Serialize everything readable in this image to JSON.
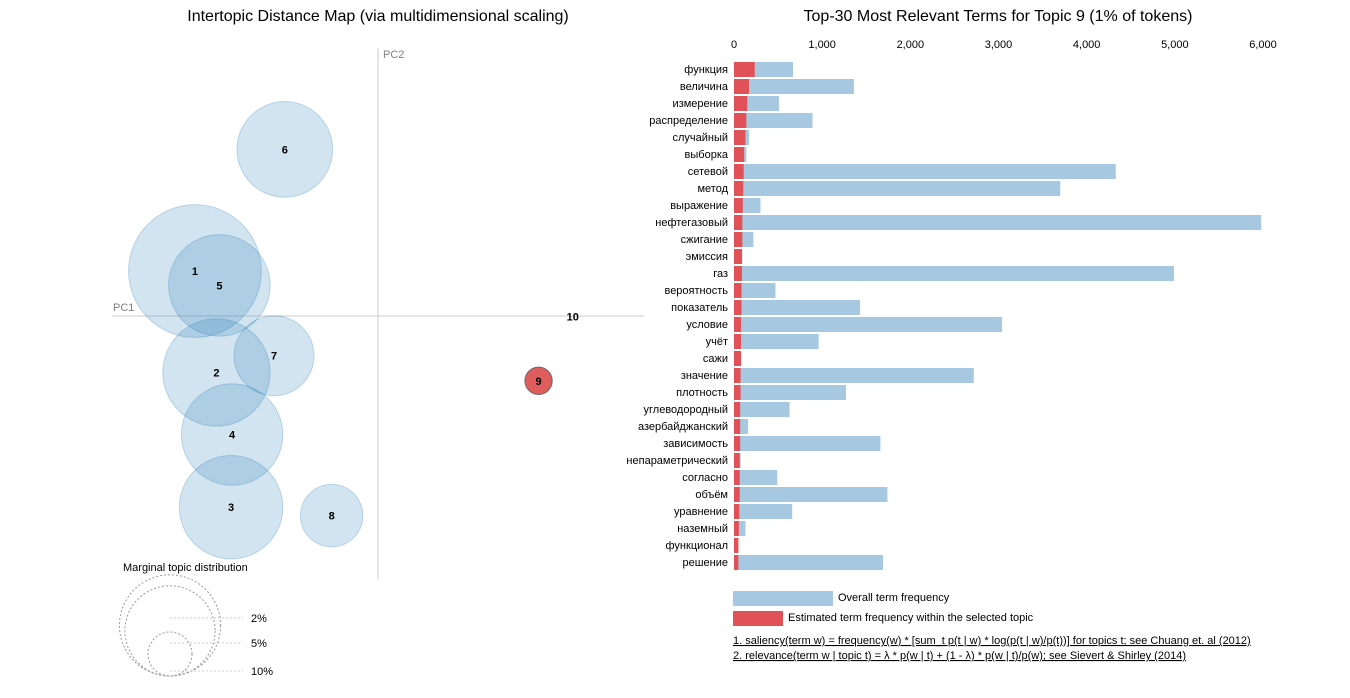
{
  "chart_data": [
    {
      "type": "scatter",
      "title": "Intertopic Distance Map (via multidimensional scaling)",
      "xlabel": "PC1",
      "ylabel": "PC2",
      "grid": false,
      "selected_topic": "9",
      "colors": {
        "bubble": "#1f77b4",
        "selected": "#d62728"
      },
      "topics": [
        {
          "id": "1",
          "x": -0.205,
          "y": 0.055,
          "r": 0.068,
          "selected": false
        },
        {
          "id": "2",
          "x": -0.183,
          "y": -0.03,
          "r": 0.055,
          "selected": false
        },
        {
          "id": "3",
          "x": -0.168,
          "y": -0.143,
          "r": 0.053,
          "selected": false
        },
        {
          "id": "4",
          "x": -0.167,
          "y": -0.082,
          "r": 0.052,
          "selected": false
        },
        {
          "id": "5",
          "x": -0.18,
          "y": 0.043,
          "r": 0.052,
          "selected": false
        },
        {
          "id": "6",
          "x": -0.113,
          "y": 0.157,
          "r": 0.049,
          "selected": false
        },
        {
          "id": "7",
          "x": -0.124,
          "y": -0.016,
          "r": 0.041,
          "selected": false
        },
        {
          "id": "8",
          "x": -0.065,
          "y": -0.15,
          "r": 0.032,
          "selected": false
        },
        {
          "id": "9",
          "x": 0.147,
          "y": -0.037,
          "r": 0.014,
          "selected": true
        },
        {
          "id": "10",
          "x": 0.182,
          "y": 0.017,
          "r": 0.0,
          "selected": false
        }
      ],
      "xlim": [
        -0.29,
        0.255
      ],
      "ylim": [
        -0.204,
        0.242
      ],
      "marginal": {
        "title": "Marginal topic distribution",
        "levels": [
          {
            "label": "2%",
            "r": 0.02
          },
          {
            "label": "5%",
            "r": 0.041
          },
          {
            "label": "10%",
            "r": 0.046
          }
        ]
      }
    },
    {
      "type": "bar",
      "title": "Top-30 Most Relevant Terms for Topic 9 (1% of tokens)",
      "xlim": [
        0,
        6000
      ],
      "ticks": [
        "0",
        "1,000",
        "2,000",
        "3,000",
        "4,000",
        "5,000",
        "6,000"
      ],
      "tick_values": [
        0,
        1000,
        2000,
        3000,
        4000,
        5000,
        6000
      ],
      "categories": [
        "функция",
        "величина",
        "измерение",
        "распределение",
        "случайный",
        "выборка",
        "сетевой",
        "метод",
        "выражение",
        "нефтегазовый",
        "сжигание",
        "эмиссия",
        "газ",
        "вероятность",
        "показатель",
        "условие",
        "учёт",
        "сажи",
        "значение",
        "плотность",
        "углеводородный",
        "азербайджанский",
        "зависимость",
        "непараметрический",
        "согласно",
        "объём",
        "уравнение",
        "наземный",
        "функционал",
        "решение"
      ],
      "series": [
        {
          "name": "Overall term frequency",
          "color": "#a6c8e1",
          "values": [
            670,
            1360,
            510,
            890,
            170,
            140,
            4330,
            3700,
            300,
            5980,
            220,
            95,
            4990,
            470,
            1430,
            3040,
            960,
            80,
            2720,
            1270,
            630,
            160,
            1660,
            75,
            490,
            1740,
            660,
            130,
            50,
            1690
          ]
        },
        {
          "name": "Estimated term frequency within the selected topic",
          "color": "#e05257",
          "values": [
            235,
            170,
            150,
            140,
            130,
            115,
            110,
            105,
            100,
            95,
            95,
            90,
            90,
            85,
            85,
            80,
            80,
            80,
            75,
            75,
            70,
            70,
            70,
            65,
            65,
            65,
            60,
            55,
            50,
            50
          ]
        }
      ],
      "legend": {
        "overall": "Overall term frequency",
        "estimated": "Estimated term frequency within the selected topic"
      },
      "footnotes": [
        "1. saliency(term w) = frequency(w) * [sum_t p(t | w) * log(p(t | w)/p(t))] for topics t; see Chuang et. al (2012)",
        "2. relevance(term w | topic t) = λ * p(w | t) + (1 - λ) * p(w | t)/p(w); see Sievert & Shirley (2014)"
      ]
    }
  ]
}
